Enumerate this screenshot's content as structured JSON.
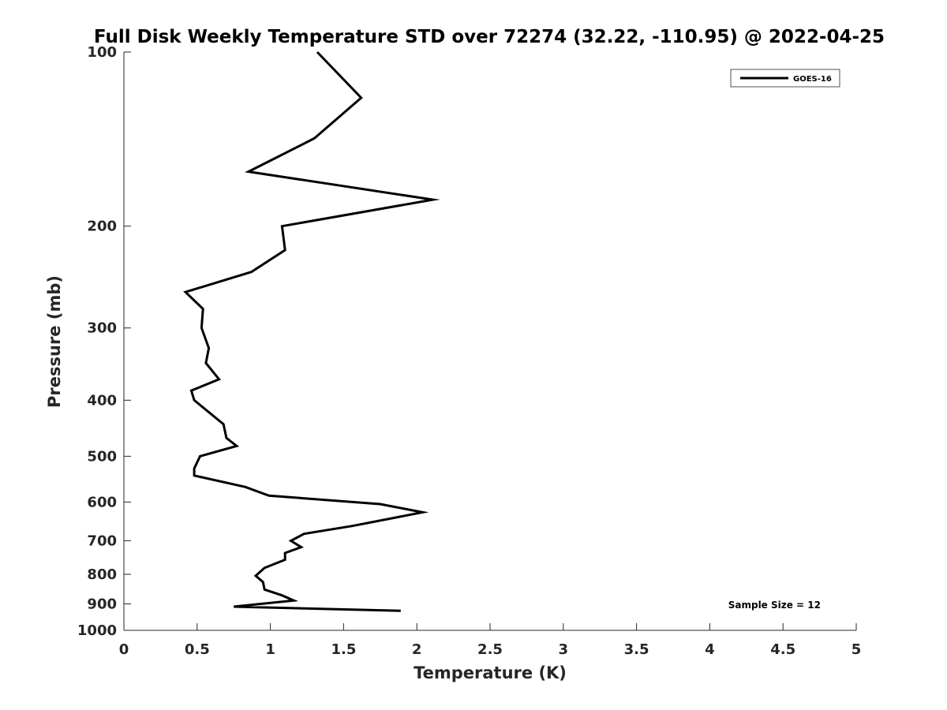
{
  "chart_data": {
    "type": "line",
    "title": "Full Disk Weekly Temperature STD over 72274 (32.22, -110.95) @ 2022-04-25",
    "xlabel": "Temperature (K)",
    "ylabel": "Pressure (mb)",
    "xlim": [
      0,
      5
    ],
    "ylim": [
      100,
      1000
    ],
    "yscale": "log",
    "y_reversed": true,
    "xticks": [
      0,
      0.5,
      1,
      1.5,
      2,
      2.5,
      3,
      3.5,
      4,
      4.5,
      5
    ],
    "xtick_labels": [
      "0",
      "0.5",
      "1",
      "1.5",
      "2",
      "2.5",
      "3",
      "3.5",
      "4",
      "4.5",
      "5"
    ],
    "yticks": [
      100,
      200,
      300,
      400,
      500,
      600,
      700,
      800,
      900,
      1000
    ],
    "ytick_labels": [
      "100",
      "200",
      "300",
      "400",
      "500",
      "600",
      "700",
      "800",
      "900",
      "1000"
    ],
    "grid": false,
    "legend_position": "top-right",
    "series": [
      {
        "name": "GOES-16",
        "color": "#000000",
        "points": [
          {
            "t": 1.32,
            "p": 100
          },
          {
            "t": 1.62,
            "p": 120
          },
          {
            "t": 1.3,
            "p": 141
          },
          {
            "t": 0.85,
            "p": 161
          },
          {
            "t": 2.11,
            "p": 180
          },
          {
            "t": 1.08,
            "p": 200
          },
          {
            "t": 1.1,
            "p": 220
          },
          {
            "t": 0.87,
            "p": 240
          },
          {
            "t": 0.42,
            "p": 260
          },
          {
            "t": 0.54,
            "p": 278
          },
          {
            "t": 0.53,
            "p": 300
          },
          {
            "t": 0.58,
            "p": 325
          },
          {
            "t": 0.56,
            "p": 345
          },
          {
            "t": 0.65,
            "p": 368
          },
          {
            "t": 0.46,
            "p": 385
          },
          {
            "t": 0.48,
            "p": 400
          },
          {
            "t": 0.68,
            "p": 440
          },
          {
            "t": 0.7,
            "p": 465
          },
          {
            "t": 0.77,
            "p": 480
          },
          {
            "t": 0.52,
            "p": 500
          },
          {
            "t": 0.48,
            "p": 525
          },
          {
            "t": 0.48,
            "p": 540
          },
          {
            "t": 0.83,
            "p": 565
          },
          {
            "t": 0.99,
            "p": 585
          },
          {
            "t": 1.75,
            "p": 605
          },
          {
            "t": 2.04,
            "p": 625
          },
          {
            "t": 1.56,
            "p": 660
          },
          {
            "t": 1.23,
            "p": 681
          },
          {
            "t": 1.14,
            "p": 700
          },
          {
            "t": 1.21,
            "p": 718
          },
          {
            "t": 1.1,
            "p": 735
          },
          {
            "t": 1.1,
            "p": 755
          },
          {
            "t": 0.96,
            "p": 780
          },
          {
            "t": 0.9,
            "p": 805
          },
          {
            "t": 0.95,
            "p": 825
          },
          {
            "t": 0.96,
            "p": 850
          },
          {
            "t": 1.08,
            "p": 870
          },
          {
            "t": 1.16,
            "p": 888
          },
          {
            "t": 0.75,
            "p": 910
          },
          {
            "t": 1.89,
            "p": 925
          }
        ]
      }
    ],
    "annotations": [
      "Sample Size = 12"
    ]
  }
}
